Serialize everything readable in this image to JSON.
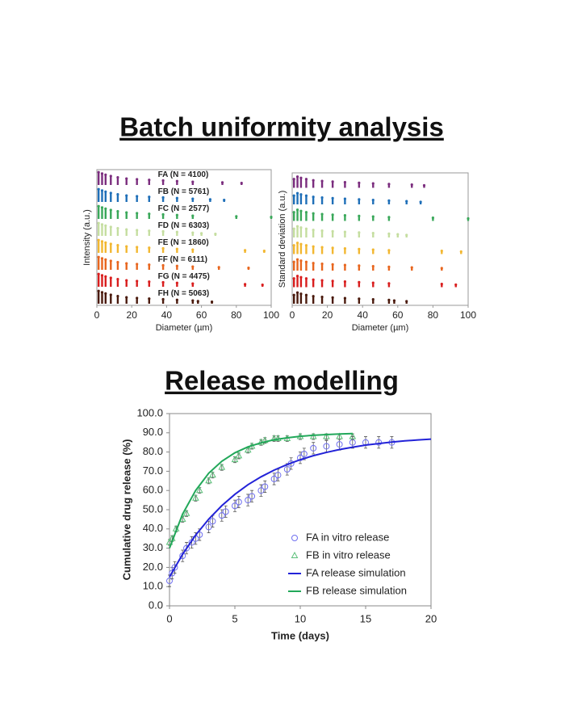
{
  "header": {
    "title_top": "Batch uniformity analysis",
    "title_bottom": "Release modelling"
  },
  "chart_data": [
    {
      "type": "strip",
      "xlabel": "Diameter (µm)",
      "ylabel": "Intensity (a.u.)",
      "xlim": [
        0,
        100
      ],
      "xticks": [
        0,
        20,
        40,
        60,
        80,
        100
      ],
      "series": [
        {
          "name": "FA (N = 4100)",
          "color": "#7b2d7e",
          "x": [
            1,
            3,
            5,
            8,
            12,
            17,
            23,
            30,
            38,
            46,
            55,
            72,
            83
          ],
          "values": [
            1.0,
            0.9,
            0.8,
            0.7,
            0.6,
            0.5,
            0.45,
            0.4,
            0.35,
            0.3,
            0.25,
            0.2,
            0.15
          ]
        },
        {
          "name": "FB (N = 5761)",
          "color": "#1f6fb8",
          "x": [
            1,
            3,
            5,
            8,
            12,
            17,
            23,
            30,
            38,
            46,
            55,
            65,
            73
          ],
          "values": [
            1.0,
            0.9,
            0.8,
            0.7,
            0.6,
            0.5,
            0.45,
            0.4,
            0.35,
            0.3,
            0.25,
            0.2,
            0.15
          ]
        },
        {
          "name": "FC (N = 2577)",
          "color": "#3aa85a",
          "x": [
            1,
            3,
            5,
            8,
            12,
            17,
            23,
            30,
            38,
            46,
            55,
            80,
            100
          ],
          "values": [
            1.0,
            0.9,
            0.8,
            0.7,
            0.6,
            0.5,
            0.45,
            0.4,
            0.35,
            0.3,
            0.25,
            0.2,
            0.15
          ]
        },
        {
          "name": "FD (N = 6303)",
          "color": "#c5dea0",
          "x": [
            1,
            3,
            5,
            8,
            12,
            17,
            23,
            30,
            38,
            46,
            55,
            60,
            68
          ],
          "values": [
            1.0,
            0.9,
            0.8,
            0.7,
            0.6,
            0.5,
            0.45,
            0.4,
            0.35,
            0.3,
            0.25,
            0.2,
            0.15
          ]
        },
        {
          "name": "FE (N = 1860)",
          "color": "#f2b731",
          "x": [
            1,
            3,
            5,
            8,
            12,
            17,
            23,
            30,
            38,
            46,
            55,
            85,
            96
          ],
          "values": [
            1.0,
            0.9,
            0.8,
            0.7,
            0.6,
            0.5,
            0.45,
            0.4,
            0.35,
            0.3,
            0.25,
            0.2,
            0.15
          ]
        },
        {
          "name": "FF (N = 6111)",
          "color": "#e8661f",
          "x": [
            1,
            3,
            5,
            8,
            12,
            17,
            23,
            30,
            38,
            46,
            55,
            70,
            87
          ],
          "values": [
            1.0,
            0.9,
            0.8,
            0.7,
            0.6,
            0.5,
            0.45,
            0.4,
            0.35,
            0.3,
            0.25,
            0.2,
            0.15
          ]
        },
        {
          "name": "FG (N = 4475)",
          "color": "#d91e1e",
          "x": [
            1,
            3,
            5,
            8,
            12,
            17,
            23,
            30,
            38,
            46,
            55,
            85,
            95
          ],
          "values": [
            1.0,
            0.9,
            0.8,
            0.7,
            0.6,
            0.5,
            0.45,
            0.4,
            0.35,
            0.3,
            0.25,
            0.2,
            0.15
          ]
        },
        {
          "name": "FH (N = 5063)",
          "color": "#4a1a0d",
          "x": [
            1,
            3,
            5,
            8,
            12,
            17,
            23,
            30,
            38,
            46,
            55,
            58,
            66
          ],
          "values": [
            1.0,
            0.9,
            0.8,
            0.7,
            0.6,
            0.5,
            0.45,
            0.4,
            0.35,
            0.3,
            0.25,
            0.2,
            0.15
          ]
        }
      ]
    },
    {
      "type": "strip",
      "xlabel": "Diameter (µm)",
      "ylabel": "Standard deviation (a.u.)",
      "xlim": [
        0,
        100
      ],
      "xticks": [
        0,
        20,
        40,
        60,
        80,
        100
      ],
      "series": [
        {
          "color": "#7b2d7e",
          "x": [
            1,
            3,
            5,
            8,
            12,
            17,
            23,
            30,
            38,
            46,
            55,
            68,
            75
          ],
          "values": [
            0.7,
            0.9,
            0.8,
            0.7,
            0.6,
            0.55,
            0.5,
            0.45,
            0.4,
            0.35,
            0.3,
            0.25,
            0.2
          ]
        },
        {
          "color": "#1f6fb8",
          "x": [
            1,
            3,
            5,
            8,
            12,
            17,
            23,
            30,
            38,
            46,
            55,
            65,
            73
          ],
          "values": [
            0.7,
            0.9,
            0.8,
            0.7,
            0.6,
            0.55,
            0.5,
            0.45,
            0.4,
            0.35,
            0.3,
            0.25,
            0.2
          ]
        },
        {
          "color": "#3aa85a",
          "x": [
            1,
            3,
            5,
            8,
            12,
            17,
            23,
            30,
            38,
            46,
            55,
            80,
            100
          ],
          "values": [
            0.7,
            0.9,
            0.8,
            0.7,
            0.6,
            0.55,
            0.5,
            0.45,
            0.4,
            0.35,
            0.3,
            0.25,
            0.2
          ]
        },
        {
          "color": "#c5dea0",
          "x": [
            1,
            3,
            5,
            8,
            12,
            17,
            23,
            30,
            38,
            46,
            55,
            60,
            65
          ],
          "values": [
            0.7,
            0.9,
            0.8,
            0.7,
            0.6,
            0.55,
            0.5,
            0.45,
            0.4,
            0.35,
            0.3,
            0.25,
            0.2
          ]
        },
        {
          "color": "#f2b731",
          "x": [
            1,
            3,
            5,
            8,
            12,
            17,
            23,
            30,
            38,
            46,
            55,
            85,
            96
          ],
          "values": [
            0.7,
            0.9,
            0.8,
            0.7,
            0.6,
            0.55,
            0.5,
            0.45,
            0.4,
            0.35,
            0.3,
            0.25,
            0.2
          ]
        },
        {
          "color": "#e8661f",
          "x": [
            1,
            3,
            5,
            8,
            12,
            17,
            23,
            30,
            38,
            46,
            55,
            68,
            85
          ],
          "values": [
            0.7,
            0.9,
            0.8,
            0.7,
            0.6,
            0.55,
            0.5,
            0.45,
            0.4,
            0.35,
            0.3,
            0.25,
            0.2
          ]
        },
        {
          "color": "#d91e1e",
          "x": [
            1,
            3,
            5,
            8,
            12,
            17,
            23,
            30,
            38,
            46,
            55,
            85,
            93
          ],
          "values": [
            0.7,
            0.9,
            0.8,
            0.7,
            0.6,
            0.55,
            0.5,
            0.45,
            0.4,
            0.35,
            0.3,
            0.25,
            0.2
          ]
        },
        {
          "color": "#4a1a0d",
          "x": [
            1,
            3,
            5,
            8,
            12,
            17,
            23,
            30,
            38,
            46,
            55,
            58,
            65
          ],
          "values": [
            0.7,
            0.9,
            0.8,
            0.7,
            0.6,
            0.55,
            0.5,
            0.45,
            0.4,
            0.35,
            0.3,
            0.25,
            0.2
          ]
        }
      ]
    },
    {
      "type": "release",
      "xlabel": "Time (days)",
      "ylabel": "Cumulative drug release (%)",
      "xlim": [
        0,
        20
      ],
      "xticks": [
        0,
        5,
        10,
        15,
        20
      ],
      "ylim": [
        0,
        100
      ],
      "yticks": [
        {
          "value": 0,
          "label": "0.0"
        },
        {
          "value": 10,
          "label": "10.0"
        },
        {
          "value": 20,
          "label": "20.0"
        },
        {
          "value": 30,
          "label": "30.0"
        },
        {
          "value": 40,
          "label": "40.0"
        },
        {
          "value": 50,
          "label": "50.0"
        },
        {
          "value": 60,
          "label": "60.0"
        },
        {
          "value": 70,
          "label": "70.0"
        },
        {
          "value": 80,
          "label": "80.0"
        },
        {
          "value": 90,
          "label": "90.0"
        },
        {
          "value": 100,
          "label": "100.0"
        }
      ],
      "series": [
        {
          "name": "FA in vitro release",
          "style": "circle",
          "color": "#7070f0",
          "x": [
            0,
            0.2,
            0.4,
            1,
            1.3,
            1.7,
            2,
            2.3,
            3,
            3.3,
            4,
            4.3,
            5,
            5.3,
            6,
            6.3,
            7,
            7.3,
            8,
            8.3,
            9,
            9.3,
            10,
            10.3,
            11,
            12,
            13,
            14,
            15,
            16,
            17
          ],
          "values": [
            13,
            17,
            20,
            26,
            30,
            33,
            35,
            37,
            41,
            44,
            47,
            49,
            52,
            54,
            55,
            57,
            60,
            62,
            66,
            68,
            71,
            74,
            77,
            79,
            82,
            83,
            84,
            85,
            85,
            85,
            85
          ],
          "errors": [
            3,
            3,
            3,
            3,
            3,
            3,
            3,
            3,
            3,
            3,
            3,
            3,
            3,
            3,
            3,
            3,
            3,
            3,
            3,
            3,
            3,
            3,
            3,
            3,
            3,
            3,
            3,
            3,
            3,
            3,
            3
          ]
        },
        {
          "name": "FB in vitro release",
          "style": "triangle",
          "color": "#5cc07a",
          "x": [
            0,
            0.2,
            0.5,
            1,
            1.3,
            2,
            2.3,
            3,
            3.3,
            4,
            5,
            5.3,
            6,
            6.3,
            7,
            7.3,
            8,
            8.3,
            9,
            10,
            11,
            12,
            13,
            14
          ],
          "values": [
            33,
            35,
            40,
            45,
            48,
            56,
            60,
            65,
            68,
            72,
            76,
            78,
            81,
            83,
            85,
            86,
            87,
            87,
            87,
            88,
            88,
            88,
            88,
            88
          ],
          "errors": [
            1.5,
            1.5,
            1.5,
            1.5,
            1.5,
            1.5,
            1.5,
            1.5,
            1.5,
            1.5,
            1.5,
            1.5,
            1.5,
            1.5,
            1.5,
            1.5,
            1.5,
            1.5,
            1.5,
            1.5,
            1.5,
            1.5,
            1.5,
            1.5
          ]
        },
        {
          "name": "FA release simulation",
          "style": "line",
          "color": "#2323d8",
          "x": [
            0,
            1,
            2,
            3,
            4,
            5,
            6,
            7,
            8,
            9,
            10,
            11,
            12,
            13,
            14,
            15,
            16,
            17,
            18,
            19,
            20
          ],
          "values": [
            15,
            26.8,
            36.8,
            45.1,
            52.1,
            58,
            63,
            67.1,
            70.6,
            73.5,
            76,
            78.1,
            79.8,
            81.3,
            82.5,
            83.6,
            84.4,
            85.2,
            85.8,
            86.3,
            86.7
          ]
        },
        {
          "name": "FB release simulation",
          "style": "line",
          "color": "#22a85a",
          "x": [
            0,
            1,
            2,
            3,
            4,
            5,
            6,
            7,
            8,
            9,
            10,
            11,
            12,
            13,
            14
          ],
          "values": [
            30,
            47.7,
            60,
            69,
            75.2,
            79.6,
            82.7,
            84.8,
            86.4,
            87.4,
            88.2,
            88.7,
            89.1,
            89.4,
            89.6
          ]
        }
      ]
    }
  ]
}
